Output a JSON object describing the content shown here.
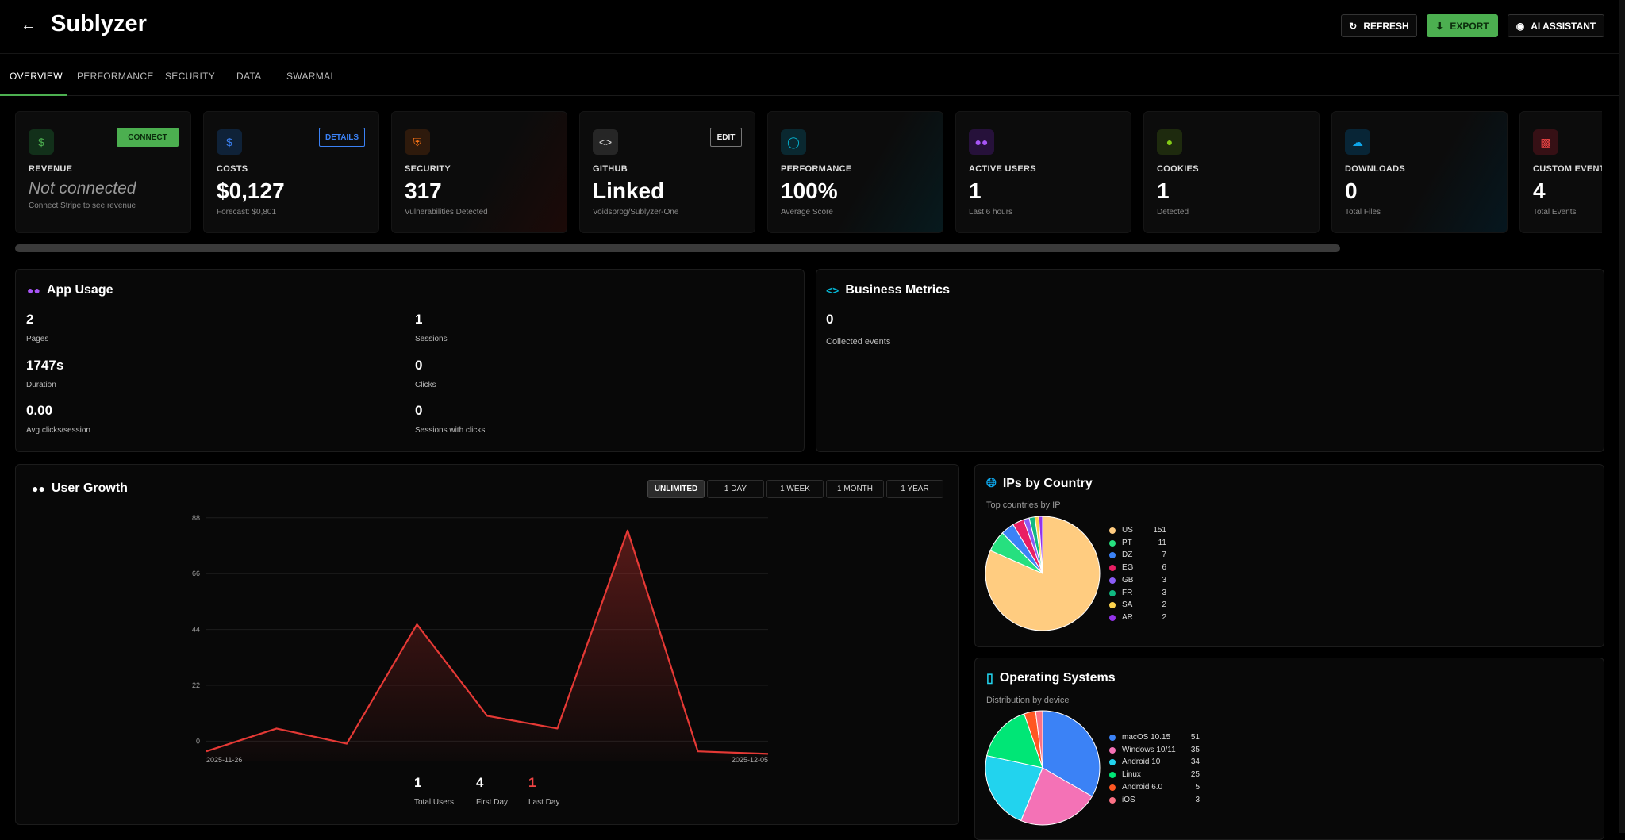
{
  "header": {
    "title": "Sublyzer",
    "refresh_label": "REFRESH",
    "export_label": "EXPORT",
    "ai_label": "AI ASSISTANT"
  },
  "tabs": [
    {
      "label": "OVERVIEW",
      "active": true
    },
    {
      "label": "PERFORMANCE"
    },
    {
      "label": "SECURITY"
    },
    {
      "label": "DATA"
    },
    {
      "label": "SWARMAI"
    }
  ],
  "cards": [
    {
      "label": "REVENUE",
      "value": "Not connected",
      "sub": "Connect Stripe to see revenue",
      "icon": "dollar-icon",
      "button": "CONNECT",
      "accent": "#4caf50"
    },
    {
      "label": "COSTS",
      "value": "$0,127",
      "sub": "Forecast: $0,801",
      "icon": "dollar-icon",
      "button": "DETAILS",
      "accent": "#3b82f6"
    },
    {
      "label": "SECURITY",
      "value": "317",
      "sub": "Vulnerabilities Detected",
      "icon": "shield-icon",
      "accent": "#f97316"
    },
    {
      "label": "GITHUB",
      "value": "Linked",
      "sub": "Voidsprog/Sublyzer-One",
      "icon": "code-icon",
      "button": "EDIT",
      "accent": "#cccccc"
    },
    {
      "label": "PERFORMANCE",
      "value": "100%",
      "sub": "Average Score",
      "icon": "gauge-icon",
      "accent": "#06b6d4"
    },
    {
      "label": "ACTIVE USERS",
      "value": "1",
      "sub": "Last 6 hours",
      "icon": "users-icon",
      "accent": "#a855f7"
    },
    {
      "label": "COOKIES",
      "value": "1",
      "sub": "Detected",
      "icon": "cookie-icon",
      "accent": "#84cc16"
    },
    {
      "label": "DOWNLOADS",
      "value": "0",
      "sub": "Total Files",
      "icon": "cloud-download-icon",
      "accent": "#0ea5e9"
    },
    {
      "label": "CUSTOM EVENTS",
      "value": "4",
      "sub": "Total Events",
      "icon": "chart-icon",
      "accent": "#ef4444"
    }
  ],
  "app_usage": {
    "title": "App Usage",
    "stats": [
      {
        "value": "2",
        "label": "Pages"
      },
      {
        "value": "1",
        "label": "Sessions"
      },
      {
        "value": "1747s",
        "label": "Duration"
      },
      {
        "value": "0",
        "label": "Clicks"
      },
      {
        "value": "0.00",
        "label": "Avg clicks/session"
      },
      {
        "value": "0",
        "label": "Sessions with clicks"
      }
    ]
  },
  "business_metrics": {
    "title": "Business Metrics",
    "value": "0",
    "label": "Collected events"
  },
  "user_growth": {
    "title": "User Growth",
    "ranges": [
      "UNLIMITED",
      "1 DAY",
      "1 WEEK",
      "1 MONTH",
      "1 YEAR"
    ],
    "selected_range": "UNLIMITED",
    "totals": [
      {
        "value": "1",
        "label": "Total Users",
        "color": "#ffffff"
      },
      {
        "value": "4",
        "label": "First Day",
        "color": "#ffffff"
      },
      {
        "value": "1",
        "label": "Last Day",
        "color": "#ef4444"
      }
    ]
  },
  "ips_by_country": {
    "title": "IPs by Country",
    "subtitle": "Top countries by IP"
  },
  "operating_systems": {
    "title": "Operating Systems",
    "subtitle": "Distribution by device"
  },
  "chart_data": [
    {
      "type": "area",
      "x": [
        "2025-11-26",
        "",
        "",
        "",
        "",
        "",
        "",
        "",
        "2025-12-05"
      ],
      "series": [
        {
          "values": [
            -4,
            5,
            -1,
            46,
            10,
            5,
            83,
            -4,
            -5
          ]
        }
      ],
      "x_tick_labels": [
        "2025-11-26",
        "2025-12-05"
      ],
      "y_ticks": [
        0,
        22,
        44,
        66,
        88
      ],
      "ylim": [
        -8,
        92
      ],
      "color": "#e53935",
      "grid": true
    },
    {
      "type": "pie",
      "labels": [
        "US",
        "PT",
        "DZ",
        "EG",
        "GB",
        "FR",
        "SA",
        "AR"
      ],
      "values": [
        151,
        11,
        7,
        6,
        3,
        3,
        2,
        2
      ],
      "colors": [
        "#ffcc80",
        "#26e07f",
        "#3b82f6",
        "#e91e63",
        "#8b5cf6",
        "#10b981",
        "#fcd34d",
        "#9333ea"
      ],
      "legend": "right"
    },
    {
      "type": "pie",
      "labels": [
        "macOS 10.15",
        "Windows 10/11",
        "Android 10",
        "Linux",
        "Android 6.0",
        "iOS"
      ],
      "values": [
        51,
        35,
        34,
        25,
        5,
        3
      ],
      "colors": [
        "#3b82f6",
        "#f472b6",
        "#22d3ee",
        "#00e676",
        "#ff5722",
        "#fb7185"
      ],
      "legend": "right"
    }
  ]
}
